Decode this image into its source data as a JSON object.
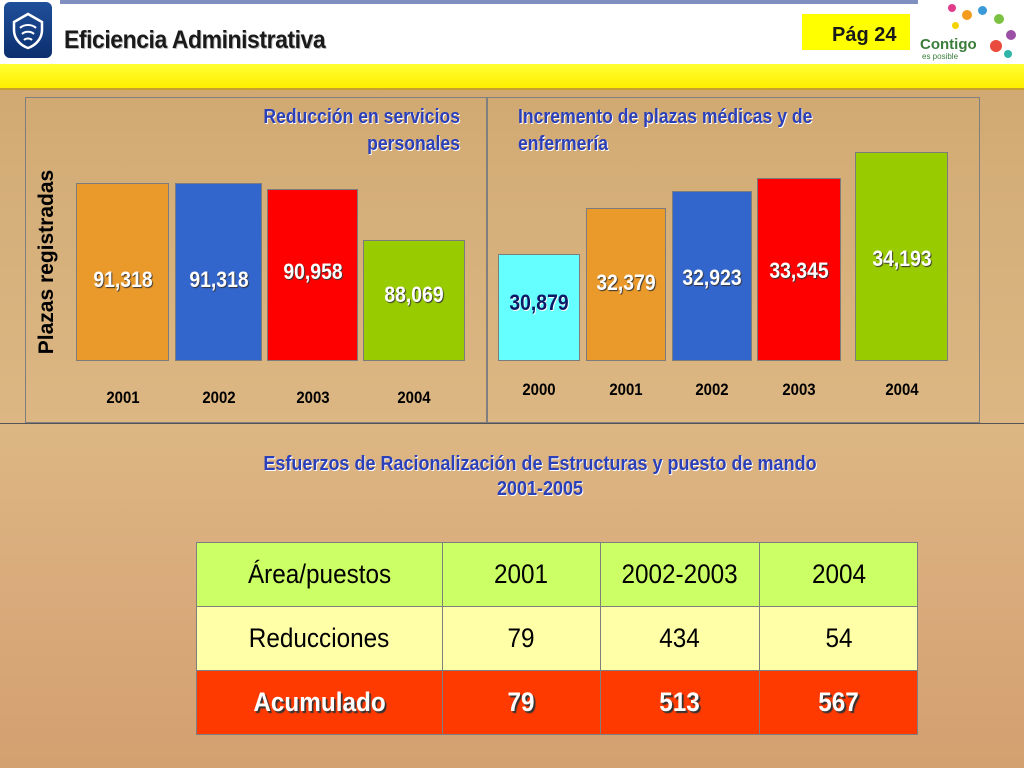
{
  "header": {
    "title": "Eficiencia Administrativa",
    "page": "Pág 24",
    "brand": "Contigo",
    "brand_sub": "es posible"
  },
  "y_axis_label": "Plazas registradas",
  "colors": {
    "orange": "#ea9a2a",
    "blue": "#3366cc",
    "red": "#ff0000",
    "green": "#99cc00",
    "cyan": "#66ffff",
    "title_blue": "#2b3fb8",
    "yellow": "#ffff00"
  },
  "chart_data": [
    {
      "type": "bar",
      "title": "Reducción en servicios personales",
      "title_lines": [
        "Reducción en servicios",
        "personales"
      ],
      "ylabel": "Plazas registradas",
      "categories": [
        "2001",
        "2002",
        "2003",
        "2004"
      ],
      "values": [
        91318,
        91318,
        90958,
        88069
      ],
      "value_labels": [
        "91,318",
        "91,318",
        "90,958",
        "88,069"
      ],
      "bar_colors": [
        "#ea9a2a",
        "#3366cc",
        "#ff0000",
        "#99cc00"
      ],
      "label_styles": [
        "white",
        "white",
        "white",
        "white"
      ]
    },
    {
      "type": "bar",
      "title": "Incremento de plazas médicas y de enfermería",
      "title_lines": [
        "Incremento de plazas médicas y de",
        "enfermería"
      ],
      "categories": [
        "2000",
        "2001",
        "2002",
        "2003",
        "2004"
      ],
      "values": [
        30879,
        32379,
        32923,
        33345,
        34193
      ],
      "value_labels": [
        "30,879",
        "32,379",
        "32,923",
        "33,345",
        "34,193"
      ],
      "bar_colors": [
        "#66ffff",
        "#ea9a2a",
        "#3366cc",
        "#ff0000",
        "#99cc00"
      ],
      "label_styles": [
        "dark",
        "white",
        "white",
        "white",
        "white"
      ]
    }
  ],
  "section": {
    "title_line1": "Esfuerzos de Racionalización de Estructuras  y puesto de mando",
    "title_line2": "2001-2005"
  },
  "table": {
    "headers": [
      "Área/puestos",
      "2001",
      "2002-2003",
      "2004"
    ],
    "rows": [
      [
        "Reducciones",
        "79",
        "434",
        "54"
      ],
      [
        "Acumulado",
        "79",
        "513",
        "567"
      ]
    ]
  }
}
